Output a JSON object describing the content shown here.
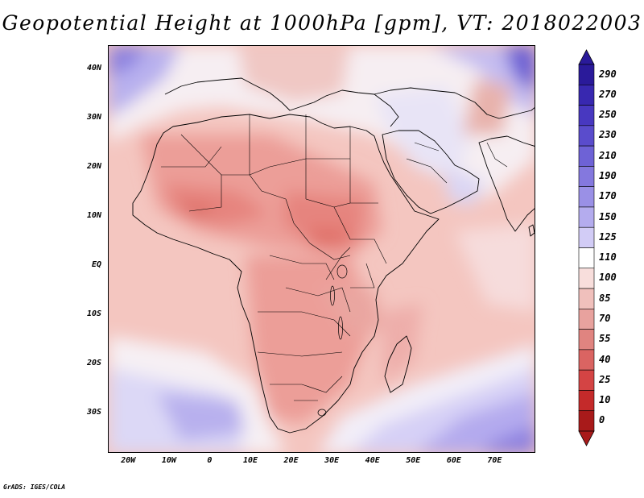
{
  "title": "Geopotential Height at 1000hPa [gpm], VT: 2018022003",
  "footer": "GrADS: IGES/COLA",
  "map": {
    "lon_range": [
      -25,
      80
    ],
    "lat_range": [
      -38,
      45
    ],
    "y_ticks": [
      {
        "lat": 40,
        "label": "40N"
      },
      {
        "lat": 30,
        "label": "30N"
      },
      {
        "lat": 20,
        "label": "20N"
      },
      {
        "lat": 10,
        "label": "10N"
      },
      {
        "lat": 0,
        "label": "EQ"
      },
      {
        "lat": -10,
        "label": "10S"
      },
      {
        "lat": -20,
        "label": "20S"
      },
      {
        "lat": -30,
        "label": "30S"
      }
    ],
    "x_ticks": [
      {
        "lon": -20,
        "label": "20W"
      },
      {
        "lon": -10,
        "label": "10W"
      },
      {
        "lon": 0,
        "label": "0"
      },
      {
        "lon": 10,
        "label": "10E"
      },
      {
        "lon": 20,
        "label": "20E"
      },
      {
        "lon": 30,
        "label": "30E"
      },
      {
        "lon": 40,
        "label": "40E"
      },
      {
        "lon": 50,
        "label": "50E"
      },
      {
        "lon": 60,
        "label": "60E"
      },
      {
        "lon": 70,
        "label": "70E"
      }
    ]
  },
  "colorbar": {
    "levels": [
      {
        "label": "290",
        "color": "#2a1a9a"
      },
      {
        "label": "270",
        "color": "#3828b0"
      },
      {
        "label": "250",
        "color": "#4838c0"
      },
      {
        "label": "230",
        "color": "#5a4ccc"
      },
      {
        "label": "210",
        "color": "#6e62d6"
      },
      {
        "label": "190",
        "color": "#8478de"
      },
      {
        "label": "170",
        "color": "#9a90e6"
      },
      {
        "label": "150",
        "color": "#b4acee"
      },
      {
        "label": "125",
        "color": "#d2ccf6"
      },
      {
        "label": "110",
        "color": "#ffffff"
      },
      {
        "label": "100",
        "color": "#f8dedc"
      },
      {
        "label": "85",
        "color": "#f0c0bc"
      },
      {
        "label": "70",
        "color": "#e8a29e"
      },
      {
        "label": "55",
        "color": "#e08480"
      },
      {
        "label": "40",
        "color": "#da6462"
      },
      {
        "label": "25",
        "color": "#d44444"
      },
      {
        "label": "10",
        "color": "#c42a2a"
      },
      {
        "label": "0",
        "color": "#a81a1a"
      }
    ]
  }
}
